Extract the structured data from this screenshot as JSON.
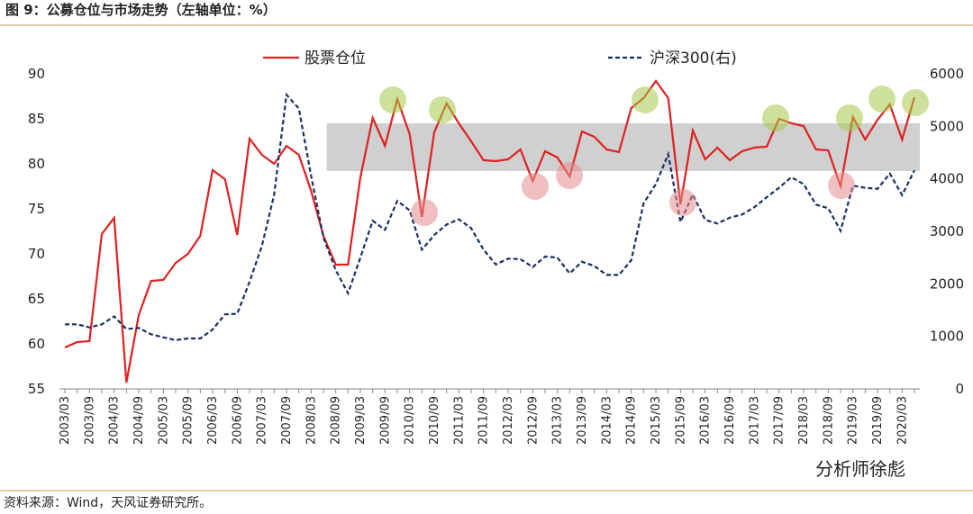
{
  "chart_data": {
    "type": "line",
    "title": "图 9：公募仓位与市场走势（左轴单位：%）",
    "source": "资料来源：Wind，天风证券研究所。",
    "watermark": "分析师徐彪",
    "categories": [
      "2003/03",
      null,
      "2003/09",
      null,
      "2004/03",
      null,
      "2004/09",
      null,
      "2005/03",
      null,
      "2005/09",
      null,
      "2006/03",
      null,
      "2006/09",
      null,
      "2007/03",
      null,
      "2007/09",
      null,
      "2008/03",
      null,
      "2008/09",
      null,
      "2009/03",
      null,
      "2009/09",
      null,
      "2010/03",
      null,
      "2010/09",
      null,
      "2011/03",
      null,
      "2011/09",
      null,
      "2012/03",
      null,
      "2012/09",
      null,
      "2013/03",
      null,
      "2013/09",
      null,
      "2014/03",
      null,
      "2014/09",
      null,
      "2015/03",
      null,
      "2015/09",
      null,
      "2016/03",
      null,
      "2016/09",
      null,
      "2017/03",
      null,
      "2017/09",
      null,
      "2018/03",
      null,
      "2018/09",
      null,
      "2019/03",
      null,
      "2019/09",
      null,
      "2020/03",
      null
    ],
    "series": [
      {
        "name": "股票仓位",
        "color": "#e02020",
        "axis": "y",
        "dash": false,
        "values": [
          59.6,
          60.2,
          60.3,
          72.2,
          74,
          55.7,
          63.2,
          67,
          67.1,
          69,
          70,
          72,
          79.3,
          78.3,
          72.1,
          82.8,
          81,
          80,
          82,
          81,
          77,
          72,
          68.8,
          68.8,
          78.5,
          85.1,
          82,
          87.2,
          83.3,
          74.1,
          83.5,
          86.7,
          84.5,
          82.5,
          80.4,
          80.3,
          80.5,
          81.6,
          78.1,
          81.4,
          80.7,
          78.6,
          83.6,
          83,
          81.6,
          81.3,
          86.2,
          87.3,
          89.2,
          87.3,
          75.5,
          83.7,
          80.5,
          81.8,
          80.4,
          81.4,
          81.8,
          81.9,
          85,
          84.5,
          84.2,
          81.6,
          81.5,
          77.5,
          85.2,
          82.7,
          84.9,
          86.6,
          82.7,
          87.4
        ]
      },
      {
        "name": "沪深300(右)",
        "color": "#1a2f66",
        "axis": "y2",
        "dash": true,
        "values": [
          1230,
          1230,
          1170,
          1230,
          1380,
          1140,
          1160,
          1040,
          980,
          930,
          960,
          960,
          1130,
          1420,
          1430,
          2040,
          2720,
          3700,
          5600,
          5340,
          4060,
          2880,
          2260,
          1820,
          2500,
          3200,
          3030,
          3580,
          3400,
          2650,
          2930,
          3130,
          3230,
          3060,
          2650,
          2370,
          2480,
          2470,
          2320,
          2520,
          2500,
          2200,
          2420,
          2340,
          2170,
          2170,
          2450,
          3530,
          3900,
          4470,
          3180,
          3700,
          3220,
          3150,
          3260,
          3320,
          3460,
          3650,
          3830,
          4030,
          3900,
          3510,
          3440,
          3010,
          3870,
          3830,
          3810,
          4100,
          3690,
          4160
        ]
      }
    ],
    "ylim": [
      55,
      90
    ],
    "yticks": [
      55,
      60,
      65,
      70,
      75,
      80,
      85,
      90
    ],
    "y2lim": [
      0,
      6000
    ],
    "y2ticks": [
      0,
      1000,
      2000,
      3000,
      4000,
      5000,
      6000
    ],
    "band": [
      79.2,
      84.5
    ]
  }
}
